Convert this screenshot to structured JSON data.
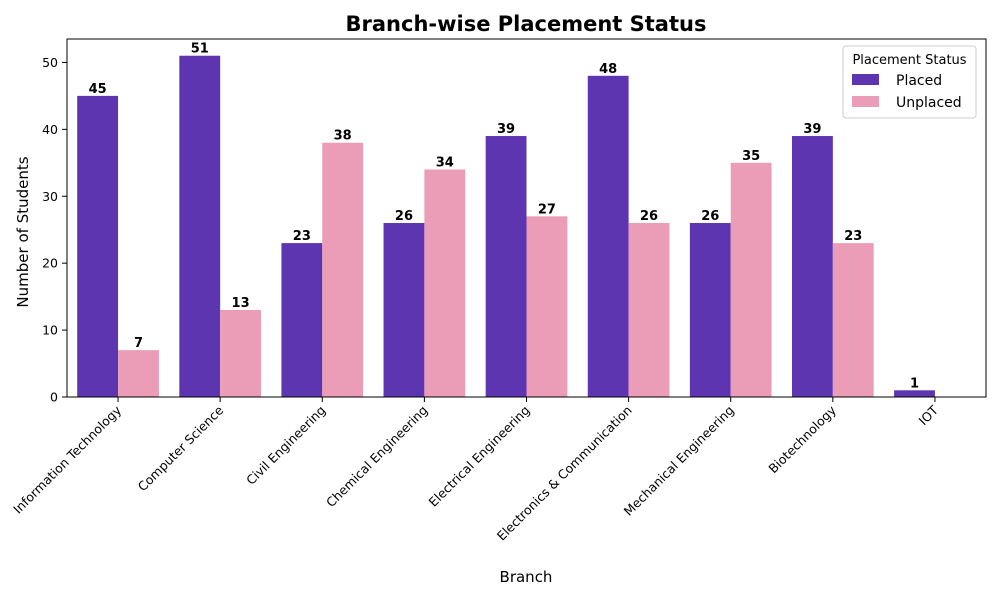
{
  "chart_data": {
    "type": "bar",
    "title": "Branch-wise Placement Status",
    "xlabel": "Branch",
    "ylabel": "Number of Students",
    "categories": [
      "Information Technology",
      "Computer Science",
      "Civil Engineering",
      "Chemical Engineering",
      "Electrical Engineering",
      "Electronics & Communication",
      "Mechanical Engineering",
      "Biotechnology",
      "IOT"
    ],
    "series": [
      {
        "name": "Placed",
        "color": "#5e35b1",
        "values": [
          45,
          51,
          23,
          26,
          39,
          48,
          26,
          39,
          1
        ]
      },
      {
        "name": "Unplaced",
        "color": "#eb9cb6",
        "values": [
          7,
          13,
          38,
          34,
          27,
          26,
          35,
          23,
          0
        ]
      }
    ],
    "ylim": [
      0,
      53.5
    ],
    "yticks": [
      0,
      10,
      20,
      30,
      40,
      50
    ],
    "legend": {
      "title": "Placement Status",
      "placement": "top-right"
    },
    "grid": false,
    "xtick_rotation": 45
  }
}
